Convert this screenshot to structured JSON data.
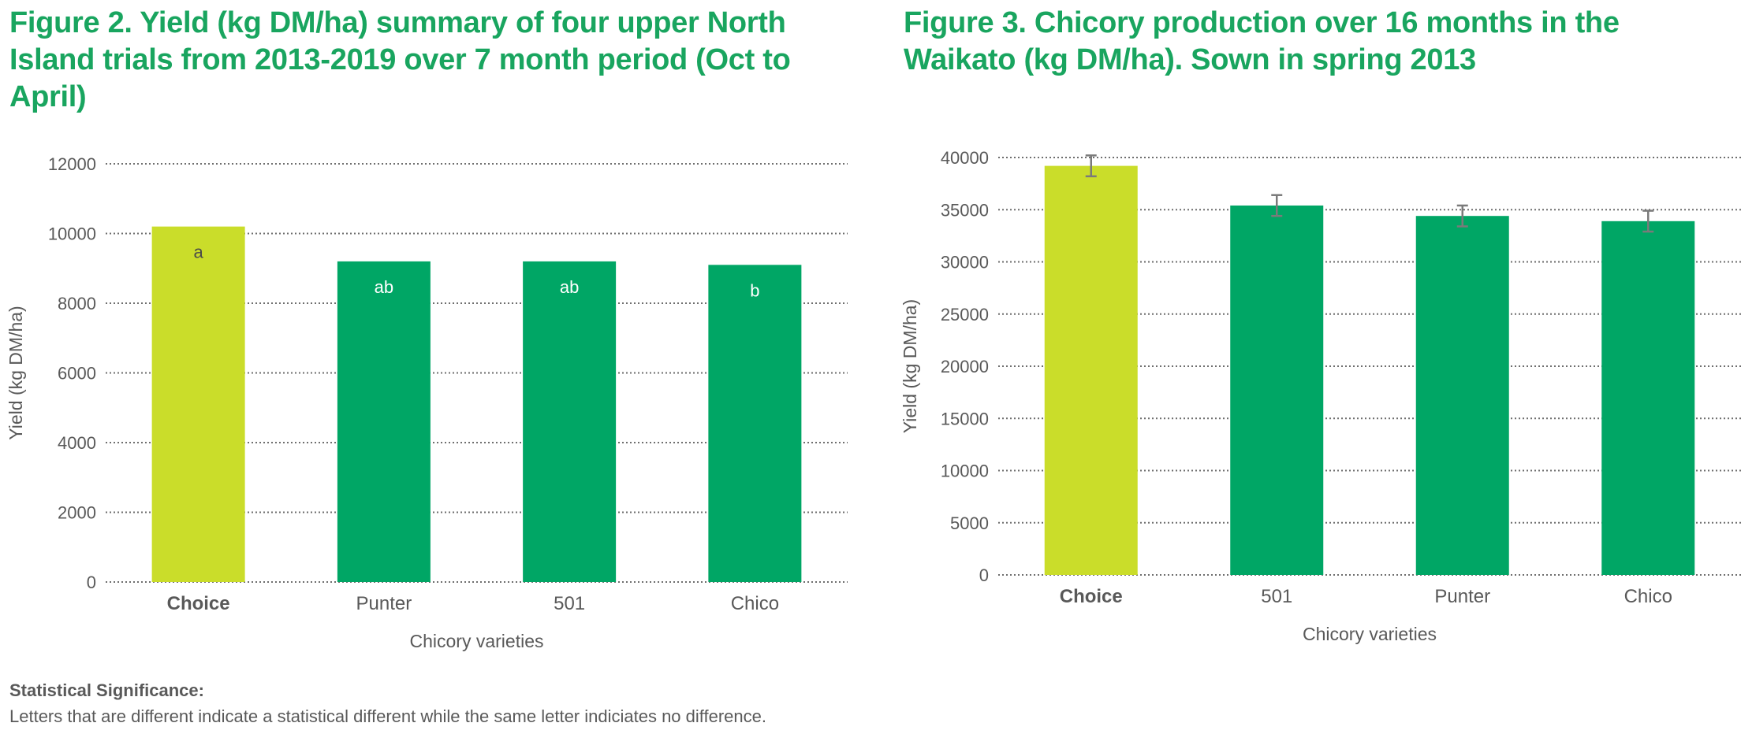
{
  "figure2": {
    "title": "Figure 2. Yield (kg DM/ha) summary of four upper North Island trials from 2013-2019 over 7 month period (Oct to April)"
  },
  "figure3": {
    "title": "Figure 3. Chicory production over 16 months in the Waikato (kg DM/ha). Sown in spring 2013"
  },
  "note": {
    "heading": "Statistical Significance:",
    "text": "Letters that are different indicate a statistical different while the same letter indiciates no difference."
  },
  "colors": {
    "title": "#19a55f",
    "highlight": "#cadd2a",
    "bar": "#00a665"
  },
  "chart_data": [
    {
      "type": "bar",
      "categories": [
        "Choice",
        "Punter",
        "501",
        "Chico"
      ],
      "values": [
        10200,
        9200,
        9200,
        9100
      ],
      "bar_labels": [
        "a",
        "ab",
        "ab",
        "b"
      ],
      "highlight_category": "Choice",
      "xlabel": "Chicory varieties",
      "ylabel": "Yield (kg DM/ha)",
      "ylim": [
        0,
        12000
      ],
      "yticks": [
        0,
        2000,
        4000,
        6000,
        8000,
        10000,
        12000
      ],
      "grid": true
    },
    {
      "type": "bar",
      "categories": [
        "Choice",
        "501",
        "Punter",
        "Chico"
      ],
      "values": [
        39200,
        35400,
        34400,
        33900
      ],
      "error": [
        1000,
        1000,
        1000,
        1000
      ],
      "highlight_category": "Choice",
      "xlabel": "Chicory varieties",
      "ylabel": "Yield (kg DM/ha)",
      "ylim": [
        0,
        40000
      ],
      "yticks": [
        0,
        5000,
        10000,
        15000,
        20000,
        25000,
        30000,
        35000,
        40000
      ],
      "grid": true
    }
  ]
}
